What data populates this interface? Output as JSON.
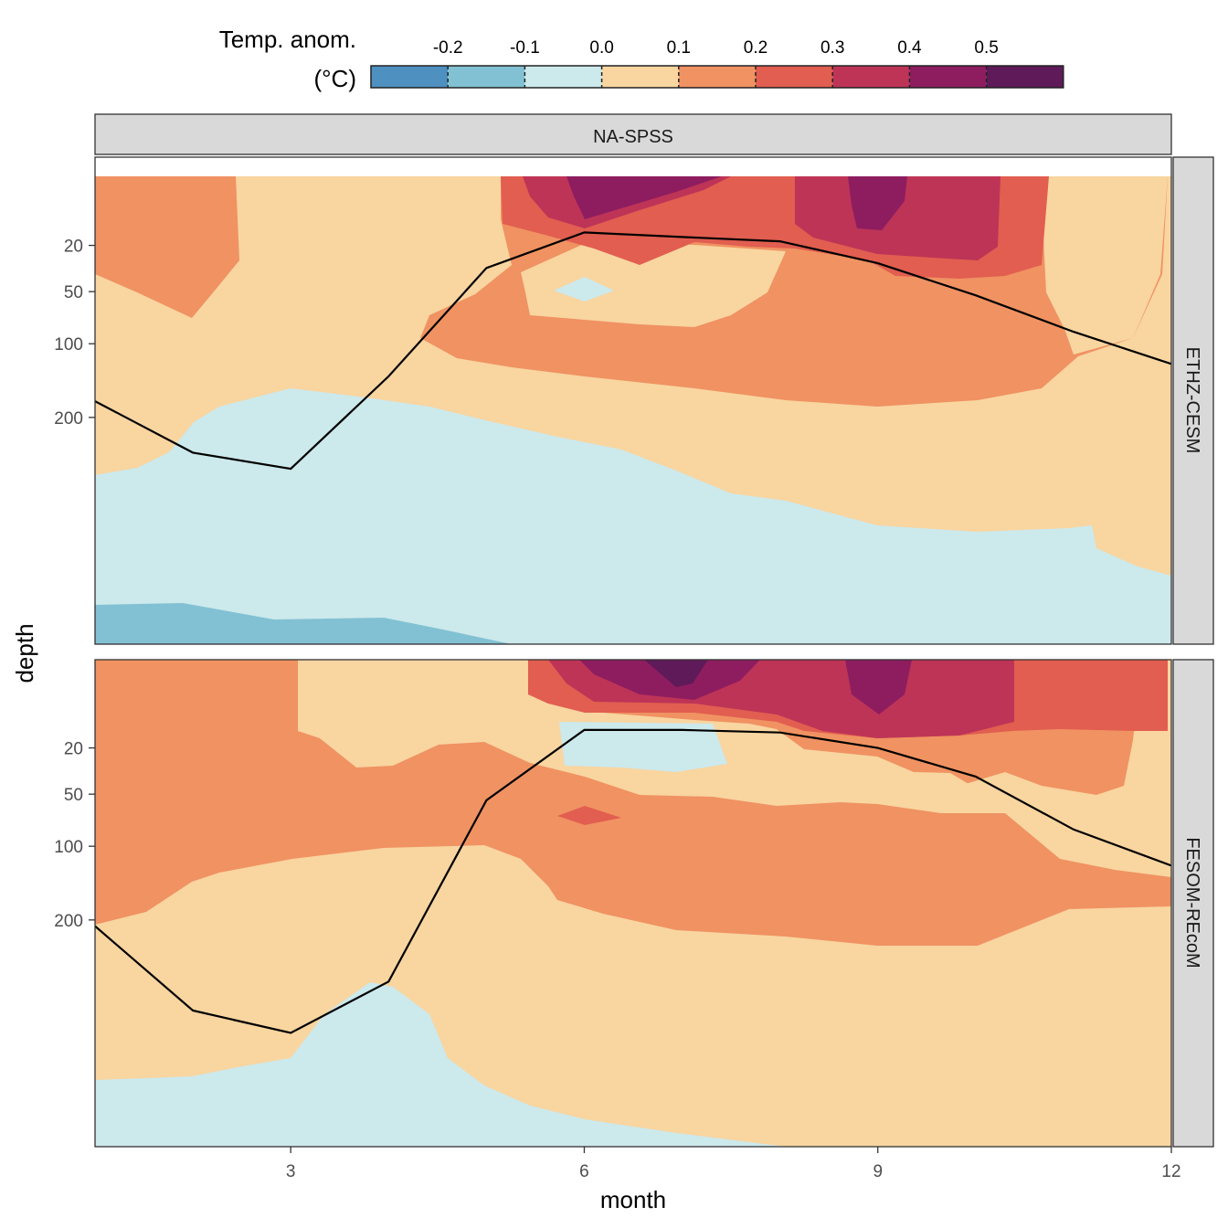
{
  "legend": {
    "title_line1": "Temp. anom.",
    "title_line2": "(°C)",
    "tick_labels": [
      "-0.2",
      "-0.1",
      "0.0",
      "0.1",
      "0.2",
      "0.3",
      "0.4",
      "0.5"
    ],
    "bins": [
      {
        "color": "#4E90C0"
      },
      {
        "color": "#82C1D3"
      },
      {
        "color": "#CCE9EC"
      },
      {
        "color": "#F9D5A0"
      },
      {
        "color": "#F09262"
      },
      {
        "color": "#E15E50"
      },
      {
        "color": "#BE3457"
      },
      {
        "color": "#8E1D60"
      },
      {
        "color": "#5E1A59"
      }
    ]
  },
  "chart_data": {
    "type": "contour",
    "facet_title": "NA-SPSS",
    "xlabel": "month",
    "ylabel": "depth",
    "x_ticks": [
      3,
      6,
      9,
      12
    ],
    "x_tick_labels": [
      "3",
      "6",
      "9",
      "12"
    ],
    "y_ticks": [
      20,
      50,
      100,
      200
    ],
    "y_tick_labels": [
      "20",
      "50",
      "100",
      "200"
    ],
    "x_range": [
      1,
      12
    ],
    "y_scale": "reversed sqrt",
    "grid": false,
    "legend_position": "top",
    "panels": [
      {
        "name": "ETHZ-CESM",
        "mld_line": {
          "months": [
            1,
            2,
            3,
            4,
            5,
            6,
            7,
            8,
            9,
            10,
            11,
            12
          ],
          "depth": [
            175,
            260,
            290,
            140,
            33,
            14,
            16,
            18,
            30,
            53,
            87,
            124
          ]
        }
      },
      {
        "name": "FESOM-REcoM",
        "mld_line": {
          "months": [
            1,
            2,
            3,
            4,
            5,
            6,
            7,
            8,
            9,
            10,
            11,
            12
          ],
          "depth": [
            210,
            370,
            420,
            310,
            55,
            12,
            12,
            13,
            20,
            37,
            82,
            123
          ]
        }
      }
    ]
  }
}
